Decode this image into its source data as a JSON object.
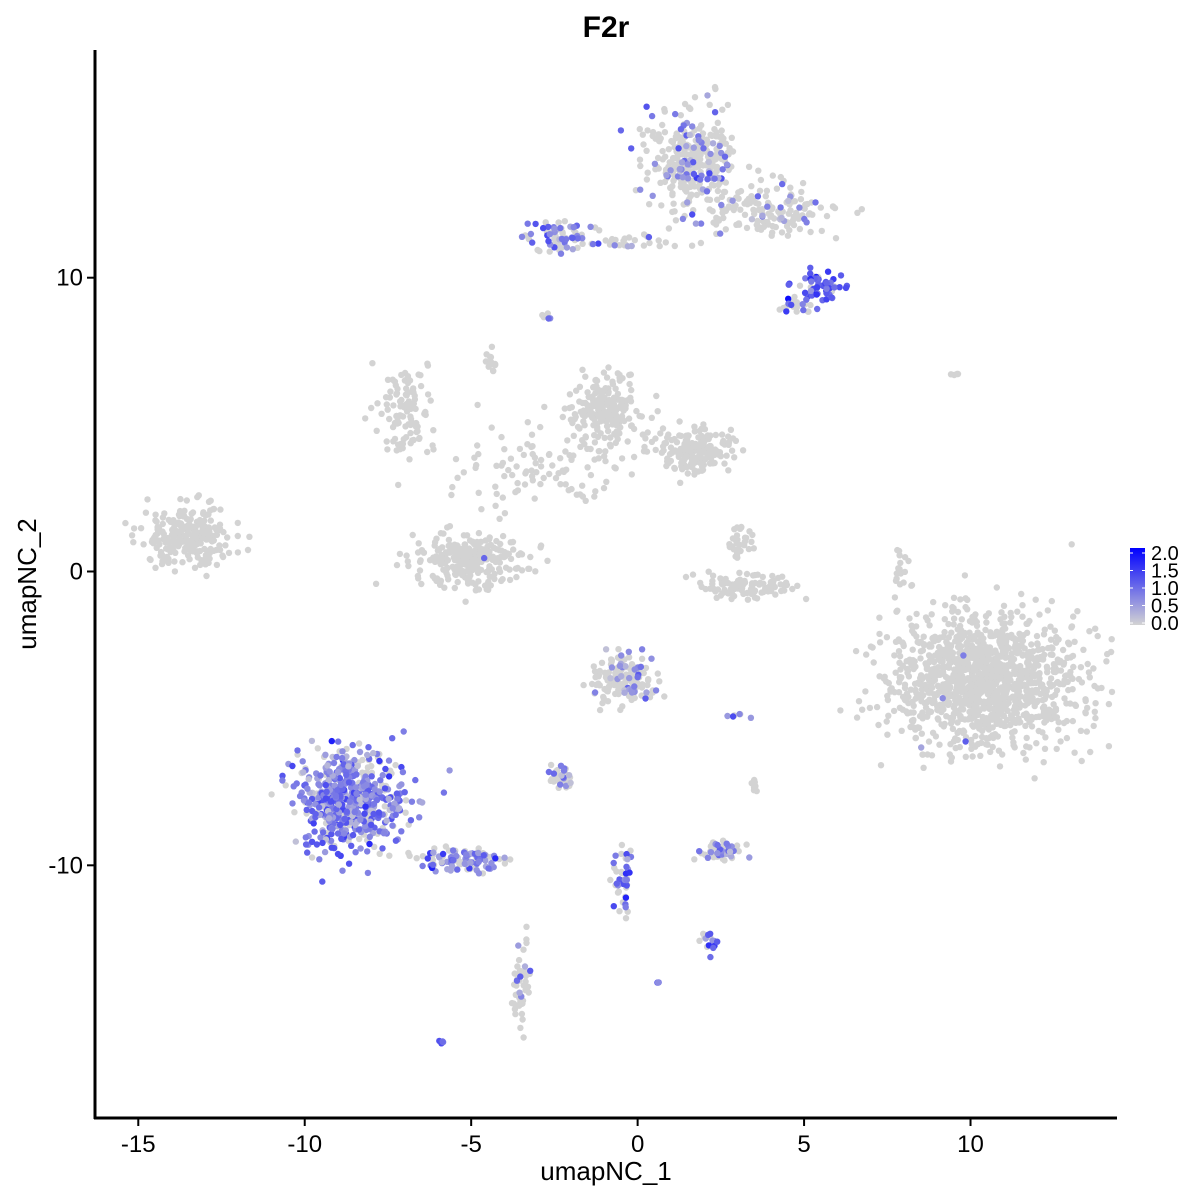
{
  "chart_data": {
    "type": "scatter",
    "title": "F2r",
    "xlabel": "umapNC_1",
    "ylabel": "umapNC_2",
    "xlim": [
      -16.3,
      14.4
    ],
    "ylim": [
      -18.6,
      17.75
    ],
    "x_ticks": [
      -15,
      -10,
      -5,
      0,
      5,
      10
    ],
    "x_tick_labels": [
      "-15",
      "-10",
      "-5",
      "0",
      "5",
      "10"
    ],
    "y_ticks": [
      -10,
      0,
      10
    ],
    "y_tick_labels": [
      "-10",
      "0",
      "10"
    ],
    "grid": false,
    "legend": {
      "placement": "right",
      "type": "colorbar",
      "ticks": [
        0.0,
        0.5,
        1.0,
        1.5,
        2.0
      ],
      "tick_labels": [
        "0.0",
        "0.5",
        "1.0",
        "1.5",
        "2.0"
      ],
      "low_color": "#d3d3d3",
      "high_color": "#0000ff",
      "range": [
        0,
        2.2
      ]
    },
    "clusters": [
      {
        "x": 1.6,
        "y": 14.0,
        "sx": 1.05,
        "sy": 1.35,
        "n": 320,
        "frac": 0.2,
        "mean": 0.8
      },
      {
        "x": 3.7,
        "y": 12.3,
        "sx": 1.9,
        "sy": 0.8,
        "n": 160,
        "frac": 0.15,
        "mean": 0.8
      },
      {
        "x": 5.5,
        "y": 9.7,
        "sx": 0.55,
        "sy": 0.45,
        "n": 60,
        "frac": 0.85,
        "mean": 1.3
      },
      {
        "x": 4.7,
        "y": 9.0,
        "sx": 0.4,
        "sy": 0.3,
        "n": 20,
        "frac": 0.4,
        "mean": 0.9
      },
      {
        "x": -2.3,
        "y": 11.4,
        "sx": 0.8,
        "sy": 0.5,
        "n": 70,
        "frac": 0.5,
        "mean": 0.9
      },
      {
        "x": -0.3,
        "y": 11.2,
        "sx": 1.0,
        "sy": 0.2,
        "n": 25,
        "frac": 0.3,
        "mean": 0.8
      },
      {
        "x": -2.75,
        "y": 8.7,
        "sx": 0.15,
        "sy": 0.15,
        "n": 6,
        "frac": 0.5,
        "mean": 0.7
      },
      {
        "x": -7.0,
        "y": 5.4,
        "sx": 0.7,
        "sy": 1.3,
        "n": 110,
        "frac": 0.0,
        "mean": 0
      },
      {
        "x": -4.4,
        "y": 7.2,
        "sx": 0.15,
        "sy": 0.3,
        "n": 15,
        "frac": 0.0,
        "mean": 0
      },
      {
        "x": -1.0,
        "y": 5.5,
        "sx": 0.8,
        "sy": 1.1,
        "n": 220,
        "frac": 0.0,
        "mean": 0
      },
      {
        "x": 1.6,
        "y": 4.1,
        "sx": 1.0,
        "sy": 0.6,
        "n": 170,
        "frac": 0.0,
        "mean": 0
      },
      {
        "x": -3.2,
        "y": 3.6,
        "sx": 2.0,
        "sy": 1.1,
        "n": 90,
        "frac": 0.0,
        "mean": 0
      },
      {
        "x": -13.4,
        "y": 1.2,
        "sx": 1.1,
        "sy": 0.85,
        "n": 260,
        "frac": 0.0,
        "mean": 0
      },
      {
        "x": -5.0,
        "y": 0.4,
        "sx": 1.4,
        "sy": 0.8,
        "n": 260,
        "frac": 0.01,
        "mean": 0.8
      },
      {
        "x": 3.2,
        "y": -0.5,
        "sx": 1.3,
        "sy": 0.35,
        "n": 100,
        "frac": 0.01,
        "mean": 0.9
      },
      {
        "x": 3.1,
        "y": 1.0,
        "sx": 0.3,
        "sy": 0.6,
        "n": 30,
        "frac": 0.0,
        "mean": 0
      },
      {
        "x": 10.4,
        "y": -3.7,
        "sx": 2.3,
        "sy": 1.8,
        "n": 1300,
        "frac": 0.005,
        "mean": 0.7
      },
      {
        "x": 7.9,
        "y": -0.3,
        "sx": 0.2,
        "sy": 1.0,
        "n": 20,
        "frac": 0.0,
        "mean": 0
      },
      {
        "x": -0.35,
        "y": -3.7,
        "sx": 0.8,
        "sy": 0.7,
        "n": 160,
        "frac": 0.15,
        "mean": 0.8
      },
      {
        "x": -8.6,
        "y": -7.8,
        "sx": 1.3,
        "sy": 1.35,
        "n": 620,
        "frac": 0.75,
        "mean": 0.9
      },
      {
        "x": -5.3,
        "y": -9.8,
        "sx": 0.95,
        "sy": 0.4,
        "n": 110,
        "frac": 0.5,
        "mean": 0.9
      },
      {
        "x": -3.5,
        "y": -13.9,
        "sx": 0.2,
        "sy": 1.3,
        "n": 50,
        "frac": 0.2,
        "mean": 0.8
      },
      {
        "x": -2.3,
        "y": -6.95,
        "sx": 0.35,
        "sy": 0.25,
        "n": 40,
        "frac": 0.3,
        "mean": 0.8
      },
      {
        "x": -0.5,
        "y": -10.5,
        "sx": 0.25,
        "sy": 1.0,
        "n": 45,
        "frac": 0.5,
        "mean": 1.0
      },
      {
        "x": 2.5,
        "y": -9.5,
        "sx": 0.55,
        "sy": 0.25,
        "n": 60,
        "frac": 0.3,
        "mean": 0.8
      },
      {
        "x": 2.2,
        "y": -12.6,
        "sx": 0.2,
        "sy": 0.3,
        "n": 15,
        "frac": 0.8,
        "mean": 1.0
      },
      {
        "x": -5.9,
        "y": -16.05,
        "sx": 0.08,
        "sy": 0.05,
        "n": 4,
        "frac": 1.0,
        "mean": 1.2
      },
      {
        "x": 3.5,
        "y": -7.3,
        "sx": 0.1,
        "sy": 0.3,
        "n": 8,
        "frac": 0.0,
        "mean": 0
      },
      {
        "x": 3.0,
        "y": -4.9,
        "sx": 0.3,
        "sy": 0.08,
        "n": 6,
        "frac": 0.5,
        "mean": 0.8
      },
      {
        "x": 9.4,
        "y": 6.7,
        "sx": 0.15,
        "sy": 0.05,
        "n": 4,
        "frac": 0.0,
        "mean": 0
      },
      {
        "x": 0.6,
        "y": -14.0,
        "sx": 0.05,
        "sy": 0.05,
        "n": 3,
        "frac": 1.0,
        "mean": 0.8
      }
    ]
  }
}
